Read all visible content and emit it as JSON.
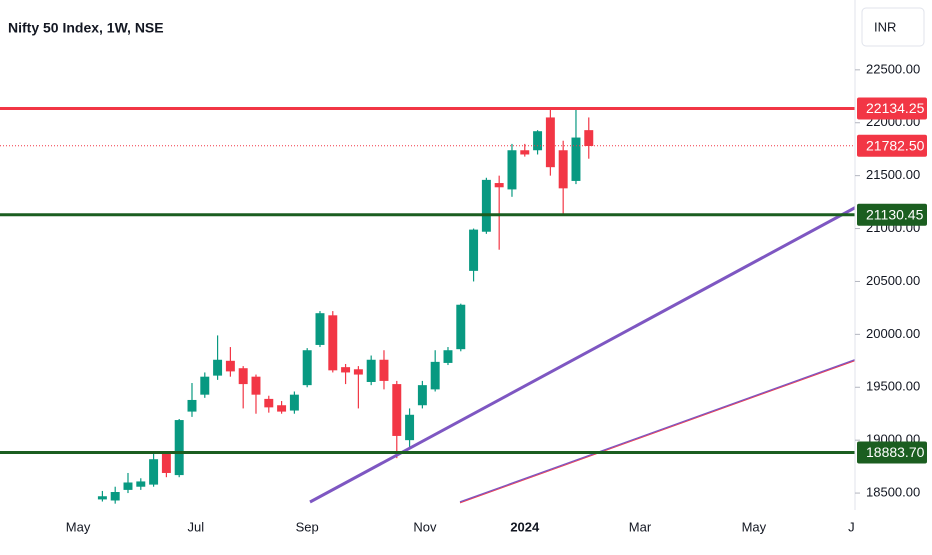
{
  "chart_data": {
    "type": "candlestick",
    "title": "Nifty 50 Index, 1W, NSE",
    "currency": "INR",
    "up_color": "#089981",
    "down_color": "#f23645",
    "x": [
      0,
      1,
      2,
      3,
      4,
      5,
      6,
      7,
      8,
      9,
      10,
      11,
      12,
      13,
      14,
      15,
      16,
      17,
      18,
      19,
      20,
      21,
      22,
      23,
      24,
      25,
      26,
      27,
      28,
      29,
      30,
      31,
      32,
      33,
      34,
      35,
      36,
      37,
      38
    ],
    "open": [
      18440,
      18430,
      18530,
      18560,
      18580,
      18870,
      18670,
      19270,
      19430,
      19610,
      19750,
      19680,
      19600,
      19390,
      19330,
      19280,
      19520,
      19900,
      20180,
      19690,
      19670,
      19550,
      19760,
      19530,
      19000,
      19330,
      19480,
      19730,
      19860,
      20600,
      20970,
      21430,
      21370,
      21740,
      21740,
      22050,
      21740,
      21450,
      21930
    ],
    "high": [
      18520,
      18560,
      18690,
      18640,
      18870,
      18890,
      19200,
      19540,
      19640,
      19990,
      19880,
      19700,
      19620,
      19420,
      19370,
      19460,
      19870,
      20220,
      20220,
      19720,
      19700,
      19800,
      19850,
      19560,
      19300,
      19560,
      19850,
      19880,
      20290,
      21000,
      21480,
      21500,
      21800,
      21800,
      21930,
      22130,
      21830,
      22130,
      22050
    ],
    "low": [
      18420,
      18400,
      18500,
      18530,
      18560,
      18650,
      18650,
      19220,
      19400,
      19570,
      19600,
      19300,
      19250,
      19260,
      19250,
      19250,
      19500,
      19880,
      19640,
      19530,
      19300,
      19520,
      19480,
      18830,
      18920,
      19300,
      19460,
      19710,
      19840,
      20500,
      20950,
      20800,
      21300,
      21680,
      21700,
      21500,
      21140,
      21420,
      21660
    ],
    "close": [
      18470,
      18510,
      18600,
      18610,
      18820,
      18690,
      19190,
      19380,
      19600,
      19760,
      19650,
      19530,
      19430,
      19310,
      19270,
      19430,
      19850,
      20200,
      19660,
      19640,
      19620,
      19760,
      19560,
      19040,
      19240,
      19520,
      19740,
      19850,
      20280,
      20990,
      21460,
      21390,
      21740,
      21700,
      21920,
      21580,
      21380,
      21860,
      21780
    ],
    "xlim": [
      -8,
      58.8
    ],
    "xticks": [
      {
        "value": -1.9,
        "label": "May"
      },
      {
        "value": 7.3,
        "label": "Jul"
      },
      {
        "value": 16,
        "label": "Sep"
      },
      {
        "value": 25.2,
        "label": "Nov"
      },
      {
        "value": 33,
        "label": "2024"
      },
      {
        "value": 42,
        "label": "Mar"
      },
      {
        "value": 50.9,
        "label": "May"
      },
      {
        "value": 58.8,
        "label": "Ju"
      }
    ],
    "ylim": [
      18340,
      23160
    ],
    "yticks": [
      {
        "value": 18500,
        "label": "18500.00"
      },
      {
        "value": 19000,
        "label": "19000.00"
      },
      {
        "value": 19500,
        "label": "19500.00"
      },
      {
        "value": 20000,
        "label": "20000.00"
      },
      {
        "value": 20500,
        "label": "20500.00"
      },
      {
        "value": 21000,
        "label": "21000.00"
      },
      {
        "value": 21500,
        "label": "21500.00"
      },
      {
        "value": 22000,
        "label": "22000.00"
      },
      {
        "value": 22500,
        "label": "22500.00"
      }
    ],
    "levels": [
      {
        "value": 22134.25,
        "label": "22134.25",
        "color": "#f23645",
        "style": "solid"
      },
      {
        "value": 21782.5,
        "label": "21782.50",
        "color": "#f23645",
        "style": "dotted"
      },
      {
        "value": 21130.45,
        "label": "21130.45",
        "color": "#1b5e20",
        "style": "solid"
      },
      {
        "value": 18883.7,
        "label": "18883.70",
        "color": "#1b5e20",
        "style": "solid"
      }
    ]
  }
}
